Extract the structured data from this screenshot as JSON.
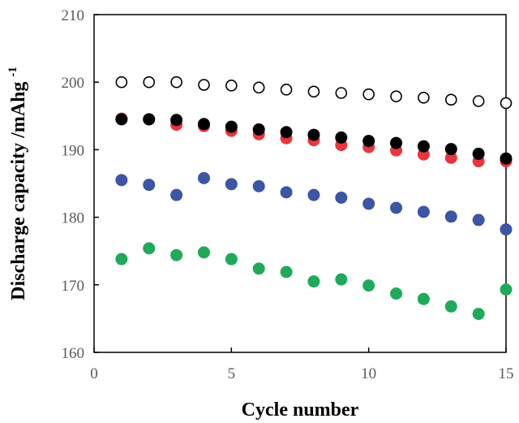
{
  "chart_data": {
    "type": "scatter",
    "title": "",
    "xlabel": "Cycle number",
    "ylabel_main": "Discharge capacity /mAhg",
    "ylabel_superscript": "-1",
    "xlim": [
      0,
      15
    ],
    "ylim": [
      160,
      210
    ],
    "xticks": [
      0,
      5,
      10,
      15
    ],
    "yticks": [
      160,
      170,
      180,
      190,
      200,
      210
    ],
    "grid": false,
    "legend": "none",
    "x": [
      1,
      2,
      3,
      4,
      5,
      6,
      7,
      8,
      9,
      10,
      11,
      12,
      13,
      14,
      15
    ],
    "series": [
      {
        "color": "#ffffff",
        "stroke": "#000000",
        "marker": "open-circle",
        "values": [
          200.0,
          200.0,
          200.0,
          199.6,
          199.5,
          199.2,
          198.9,
          198.6,
          198.4,
          198.2,
          197.9,
          197.7,
          197.4,
          197.2,
          196.9
        ]
      },
      {
        "color": "#e8363a",
        "stroke": "#e8363a",
        "marker": "filled-circle",
        "values": [
          194.6,
          194.5,
          193.7,
          193.5,
          192.8,
          192.3,
          191.7,
          191.4,
          190.7,
          190.4,
          189.9,
          189.3,
          188.8,
          188.3,
          188.3
        ]
      },
      {
        "color": "#000000",
        "stroke": "#000000",
        "marker": "filled-circle",
        "values": [
          194.5,
          194.5,
          194.4,
          193.8,
          193.4,
          193.0,
          192.6,
          192.2,
          191.8,
          191.3,
          191.0,
          190.5,
          190.1,
          189.4,
          188.7
        ]
      },
      {
        "color": "#3c55a5",
        "stroke": "#3c55a5",
        "marker": "filled-circle",
        "values": [
          185.5,
          184.8,
          183.3,
          185.8,
          184.9,
          184.6,
          183.7,
          183.3,
          182.9,
          182.0,
          181.4,
          180.8,
          180.1,
          179.6,
          178.2
        ]
      },
      {
        "color": "#1faa5a",
        "stroke": "#1faa5a",
        "marker": "filled-circle",
        "values": [
          173.8,
          175.4,
          174.4,
          174.8,
          173.8,
          172.4,
          171.9,
          170.5,
          170.8,
          169.9,
          168.7,
          167.9,
          166.8,
          165.7,
          169.3
        ]
      }
    ]
  }
}
